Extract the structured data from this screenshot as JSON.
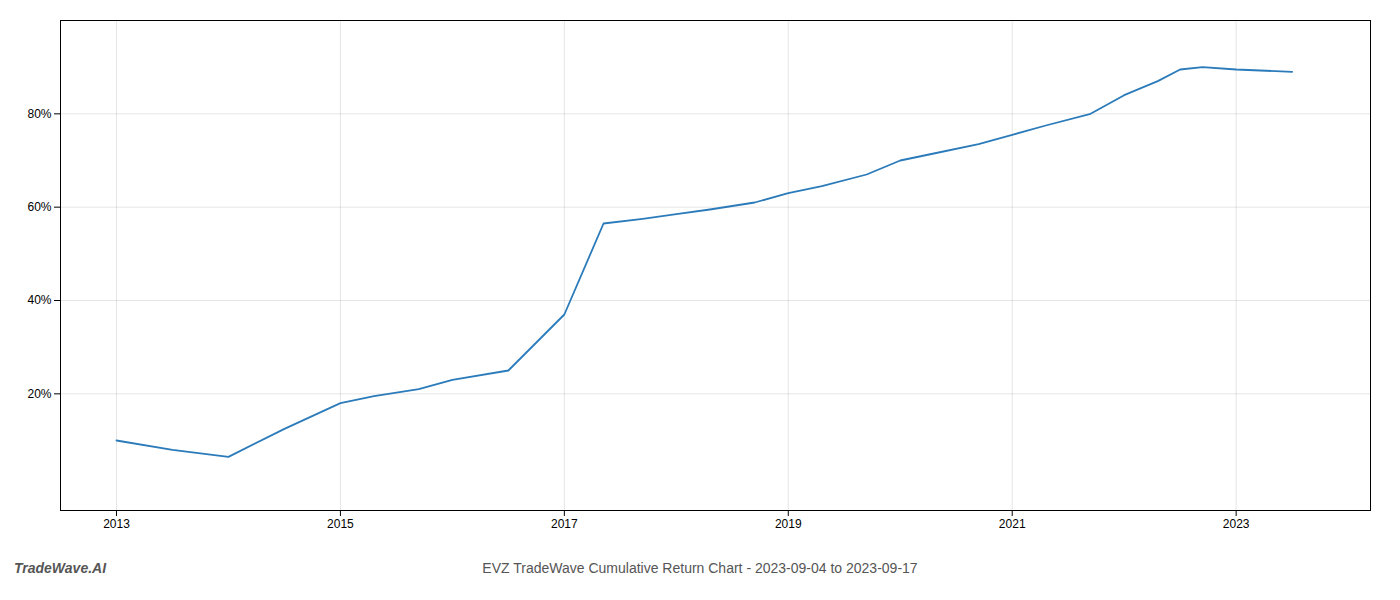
{
  "chart_data": {
    "type": "line",
    "title": "EVZ TradeWave Cumulative Return Chart - 2023-09-04 to 2023-09-17",
    "annotations": [
      "TradeWave.AI"
    ],
    "x": [
      2013.0,
      2013.5,
      2014.0,
      2014.5,
      2015.0,
      2015.3,
      2015.7,
      2016.0,
      2016.5,
      2017.0,
      2017.35,
      2017.7,
      2018.0,
      2018.3,
      2018.7,
      2019.0,
      2019.3,
      2019.7,
      2020.0,
      2020.3,
      2020.7,
      2021.0,
      2021.3,
      2021.7,
      2022.0,
      2022.3,
      2022.5,
      2022.7,
      2023.0,
      2023.5
    ],
    "values": [
      10.0,
      8.0,
      6.5,
      12.5,
      18.0,
      19.5,
      21.0,
      23.0,
      25.0,
      37.0,
      56.5,
      57.5,
      58.5,
      59.5,
      61.0,
      63.0,
      64.5,
      67.0,
      70.0,
      71.5,
      73.5,
      75.5,
      77.5,
      80.0,
      84.0,
      87.0,
      89.5,
      90.0,
      89.5,
      89.0
    ],
    "color": "#2b7bba",
    "xlim": [
      2012.5,
      2024.2
    ],
    "xticks": [
      2013,
      2015,
      2017,
      2019,
      2021,
      2023
    ],
    "ylim": [
      -5,
      100
    ],
    "yticks": [
      {
        "value": 20,
        "label": "20%"
      },
      {
        "value": 40,
        "label": "40%"
      },
      {
        "value": 60,
        "label": "60%"
      },
      {
        "value": 80,
        "label": "80%"
      }
    ],
    "grid": true
  }
}
